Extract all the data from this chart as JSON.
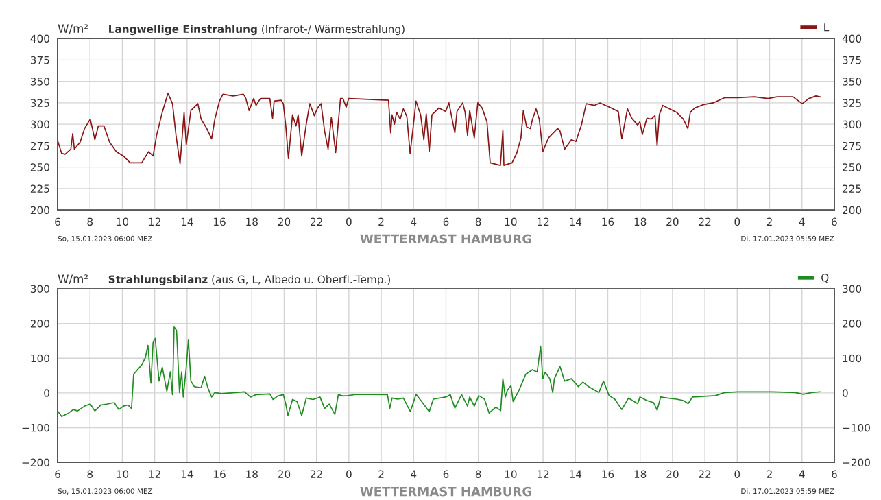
{
  "chart_data": [
    {
      "type": "line",
      "title": "Langwellige Einstrahlung",
      "subtitle": "(Infrarot-/ Wärmestrahlung)",
      "ylabel": "W/m²",
      "legend": "top right",
      "grid": true,
      "series": [
        {
          "name": "L",
          "color": "#8b1414",
          "x": [
            "2023-01-15T06:00",
            "2023-01-15T06:15",
            "2023-01-15T06:28",
            "2023-01-15T06:49",
            "2023-01-15T06:56",
            "2023-01-15T07:02",
            "2023-01-15T07:23",
            "2023-01-15T07:40",
            "2023-01-15T08:01",
            "2023-01-15T08:18",
            "2023-01-15T08:31",
            "2023-01-15T08:52",
            "2023-01-15T09:13",
            "2023-01-15T09:38",
            "2023-01-15T10:04",
            "2023-01-15T10:29",
            "2023-01-15T11:12",
            "2023-01-15T11:37",
            "2023-01-15T11:54",
            "2023-01-15T12:07",
            "2023-01-15T12:28",
            "2023-01-15T12:49",
            "2023-01-15T13:06",
            "2023-01-15T13:19",
            "2023-01-15T13:34",
            "2023-01-15T13:49",
            "2023-01-15T13:57",
            "2023-01-15T14:14",
            "2023-01-15T14:40",
            "2023-01-15T14:52",
            "2023-01-15T15:13",
            "2023-01-15T15:31",
            "2023-01-15T15:43",
            "2023-01-15T16:00",
            "2023-01-15T16:13",
            "2023-01-15T16:51",
            "2023-01-15T17:29",
            "2023-01-15T17:37",
            "2023-01-15T17:50",
            "2023-01-15T18:07",
            "2023-01-15T18:16",
            "2023-01-15T18:32",
            "2023-01-15T19:07",
            "2023-01-15T19:17",
            "2023-01-15T19:23",
            "2023-01-15T19:49",
            "2023-01-15T19:57",
            "2023-01-15T20:06",
            "2023-01-15T20:16",
            "2023-01-15T20:31",
            "2023-01-15T20:44",
            "2023-01-15T20:52",
            "2023-01-15T21:05",
            "2023-01-15T21:22",
            "2023-01-15T21:35",
            "2023-01-15T21:52",
            "2023-01-15T22:04",
            "2023-01-15T22:17",
            "2023-01-15T22:30",
            "2023-01-15T22:43",
            "2023-01-15T22:55",
            "2023-01-15T23:11",
            "2023-01-15T23:21",
            "2023-01-15T23:29",
            "2023-01-15T23:38",
            "2023-01-15T23:50",
            "2023-01-15T23:59",
            "2023-01-16T02:27",
            "2023-01-16T02:35",
            "2023-01-16T02:40",
            "2023-01-16T02:49",
            "2023-01-16T02:57",
            "2023-01-16T03:10",
            "2023-01-16T03:22",
            "2023-01-16T03:35",
            "2023-01-16T03:47",
            "2023-01-16T03:56",
            "2023-01-16T04:09",
            "2023-01-16T04:26",
            "2023-01-16T04:38",
            "2023-01-16T04:47",
            "2023-01-16T04:58",
            "2023-01-16T05:08",
            "2023-01-16T05:34",
            "2023-01-16T05:59",
            "2023-01-16T06:11",
            "2023-01-16T06:33",
            "2023-01-16T06:41",
            "2023-01-16T07:02",
            "2023-01-16T07:11",
            "2023-01-16T07:20",
            "2023-01-16T07:28",
            "2023-01-16T07:45",
            "2023-01-16T07:58",
            "2023-01-16T08:14",
            "2023-01-16T08:32",
            "2023-01-16T08:44",
            "2023-01-16T09:22",
            "2023-01-16T09:31",
            "2023-01-16T09:35",
            "2023-01-16T10:05",
            "2023-01-16T10:22",
            "2023-01-16T10:38",
            "2023-01-16T10:47",
            "2023-01-16T10:59",
            "2023-01-16T11:13",
            "2023-01-16T11:21",
            "2023-01-16T11:34",
            "2023-01-16T11:46",
            "2023-01-16T11:59",
            "2023-01-16T12:20",
            "2023-01-16T12:54",
            "2023-01-16T13:02",
            "2023-01-16T13:20",
            "2023-01-16T13:45",
            "2023-01-16T14:02",
            "2023-01-16T14:23",
            "2023-01-16T14:40",
            "2023-01-16T15:10",
            "2023-01-16T15:31",
            "2023-01-16T16:13",
            "2023-01-16T16:39",
            "2023-01-16T16:52",
            "2023-01-16T17:13",
            "2023-01-16T17:29",
            "2023-01-16T17:51",
            "2023-01-16T17:59",
            "2023-01-16T18:08",
            "2023-01-16T18:25",
            "2023-01-16T18:41",
            "2023-01-16T18:55",
            "2023-01-16T19:03",
            "2023-01-16T19:11",
            "2023-01-16T19:24",
            "2023-01-16T19:49",
            "2023-01-16T20:15",
            "2023-01-16T20:40",
            "2023-01-16T20:57",
            "2023-01-16T21:06",
            "2023-01-16T21:23",
            "2023-01-16T21:56",
            "2023-01-16T22:31",
            "2023-01-16T23:13",
            "2023-01-17T00:04",
            "2023-01-17T01:03",
            "2023-01-17T01:54",
            "2023-01-17T02:28",
            "2023-01-17T03:27",
            "2023-01-17T04:01",
            "2023-01-17T04:26",
            "2023-01-17T04:52",
            "2023-01-17T05:07"
          ],
          "values": [
            281,
            266,
            265,
            271,
            289,
            271,
            279,
            295,
            306,
            282,
            298,
            298,
            279,
            268,
            263,
            255,
            255,
            268,
            263,
            287,
            314,
            336,
            324,
            287,
            254,
            314,
            276,
            316,
            324,
            306,
            295,
            283,
            306,
            327,
            335,
            333,
            335,
            331,
            316,
            330,
            322,
            330,
            330,
            307,
            327,
            328,
            324,
            298,
            260,
            311,
            298,
            311,
            263,
            300,
            324,
            310,
            319,
            324,
            292,
            271,
            308,
            267,
            303,
            330,
            330,
            320,
            330,
            328,
            290,
            311,
            300,
            314,
            306,
            318,
            309,
            266,
            290,
            327,
            311,
            282,
            312,
            268,
            311,
            319,
            315,
            325,
            290,
            315,
            325,
            314,
            287,
            316,
            284,
            325,
            319,
            303,
            255,
            252,
            293,
            252,
            255,
            266,
            284,
            316,
            297,
            295,
            306,
            318,
            306,
            268,
            284,
            295,
            293,
            271,
            282,
            280,
            300,
            324,
            322,
            325,
            319,
            315,
            283,
            318,
            307,
            299,
            303,
            288,
            307,
            306,
            310,
            275,
            311,
            322,
            318,
            314,
            306,
            295,
            314,
            319,
            323,
            325,
            331,
            331,
            332,
            330,
            332,
            332,
            324,
            330,
            333,
            332
          ]
        }
      ],
      "xlim": [
        "2023-01-15T06:00",
        "2023-01-17T06:00"
      ],
      "xticks": [
        {
          "value": "2023-01-15T06:00",
          "label": "6"
        },
        {
          "value": "2023-01-15T08:00",
          "label": "8"
        },
        {
          "value": "2023-01-15T10:00",
          "label": "10"
        },
        {
          "value": "2023-01-15T12:00",
          "label": "12"
        },
        {
          "value": "2023-01-15T14:00",
          "label": "14"
        },
        {
          "value": "2023-01-15T16:00",
          "label": "16"
        },
        {
          "value": "2023-01-15T18:00",
          "label": "18"
        },
        {
          "value": "2023-01-15T20:00",
          "label": "20"
        },
        {
          "value": "2023-01-15T22:00",
          "label": "22"
        },
        {
          "value": "2023-01-16T00:00",
          "label": "0"
        },
        {
          "value": "2023-01-16T02:00",
          "label": "2"
        },
        {
          "value": "2023-01-16T04:00",
          "label": "4"
        },
        {
          "value": "2023-01-16T06:00",
          "label": "6"
        },
        {
          "value": "2023-01-16T08:00",
          "label": "8"
        },
        {
          "value": "2023-01-16T10:00",
          "label": "10"
        },
        {
          "value": "2023-01-16T12:00",
          "label": "12"
        },
        {
          "value": "2023-01-16T14:00",
          "label": "14"
        },
        {
          "value": "2023-01-16T16:00",
          "label": "16"
        },
        {
          "value": "2023-01-16T18:00",
          "label": "18"
        },
        {
          "value": "2023-01-16T20:00",
          "label": "20"
        },
        {
          "value": "2023-01-16T22:00",
          "label": "22"
        },
        {
          "value": "2023-01-17T00:00",
          "label": "0"
        },
        {
          "value": "2023-01-17T02:00",
          "label": "2"
        },
        {
          "value": "2023-01-17T04:00",
          "label": "4"
        },
        {
          "value": "2023-01-17T06:00",
          "label": "6"
        }
      ],
      "ylim": [
        200,
        400
      ],
      "yticks": [
        200,
        225,
        250,
        275,
        300,
        325,
        350,
        375,
        400
      ],
      "y2lim": [
        200,
        400
      ],
      "y2ticks": [
        200,
        225,
        250,
        275,
        300,
        325,
        350,
        375,
        400
      ],
      "annotations": [
        "So, 15.01.2023 06:00 MEZ",
        "WETTERMAST HAMBURG",
        "Di, 17.01.2023 05:59 MEZ"
      ]
    },
    {
      "type": "line",
      "title": "Strahlungsbilanz",
      "subtitle": "(aus G, L, Albedo u. Oberfl.-Temp.)",
      "ylabel": "W/m²",
      "legend": "top right",
      "grid": true,
      "series": [
        {
          "name": "Q",
          "color": "#1f8c1f",
          "x": [
            "2023-01-15T06:00",
            "2023-01-15T06:15",
            "2023-01-15T06:41",
            "2023-01-15T06:58",
            "2023-01-15T07:14",
            "2023-01-15T07:40",
            "2023-01-15T08:01",
            "2023-01-15T08:18",
            "2023-01-15T08:40",
            "2023-01-15T09:05",
            "2023-01-15T09:30",
            "2023-01-15T09:47",
            "2023-01-15T10:04",
            "2023-01-15T10:21",
            "2023-01-15T10:34",
            "2023-01-15T10:42",
            "2023-01-15T11:12",
            "2023-01-15T11:25",
            "2023-01-15T11:35",
            "2023-01-15T11:46",
            "2023-01-15T11:54",
            "2023-01-15T12:02",
            "2023-01-15T12:16",
            "2023-01-15T12:28",
            "2023-01-15T12:45",
            "2023-01-15T12:58",
            "2023-01-15T13:06",
            "2023-01-15T13:12",
            "2023-01-15T13:21",
            "2023-01-15T13:32",
            "2023-01-15T13:40",
            "2023-01-15T13:46",
            "2023-01-15T13:57",
            "2023-01-15T14:05",
            "2023-01-15T14:14",
            "2023-01-15T14:27",
            "2023-01-15T14:52",
            "2023-01-15T15:05",
            "2023-01-15T15:17",
            "2023-01-15T15:31",
            "2023-01-15T15:43",
            "2023-01-15T16:08",
            "2023-01-15T16:59",
            "2023-01-15T17:33",
            "2023-01-15T17:55",
            "2023-01-15T18:16",
            "2023-01-15T19:07",
            "2023-01-15T19:19",
            "2023-01-15T19:36",
            "2023-01-15T19:57",
            "2023-01-15T20:06",
            "2023-01-15T20:14",
            "2023-01-15T20:31",
            "2023-01-15T20:48",
            "2023-01-15T21:05",
            "2023-01-15T21:22",
            "2023-01-15T21:47",
            "2023-01-15T22:13",
            "2023-01-15T22:30",
            "2023-01-15T22:47",
            "2023-01-15T23:08",
            "2023-01-15T23:21",
            "2023-01-15T23:38",
            "2023-01-15T23:55",
            "2023-01-16T00:29",
            "2023-01-16T02:23",
            "2023-01-16T02:32",
            "2023-01-16T02:40",
            "2023-01-16T03:01",
            "2023-01-16T03:22",
            "2023-01-16T03:48",
            "2023-01-16T04:09",
            "2023-01-16T04:30",
            "2023-01-16T04:58",
            "2023-01-16T05:13",
            "2023-01-16T05:59",
            "2023-01-16T06:16",
            "2023-01-16T06:33",
            "2023-01-16T06:58",
            "2023-01-16T07:20",
            "2023-01-16T07:28",
            "2023-01-16T07:45",
            "2023-01-16T08:02",
            "2023-01-16T08:23",
            "2023-01-16T08:40",
            "2023-01-16T09:05",
            "2023-01-16T09:23",
            "2023-01-16T09:31",
            "2023-01-16T09:40",
            "2023-01-16T09:48",
            "2023-01-16T10:01",
            "2023-01-16T10:09",
            "2023-01-16T10:31",
            "2023-01-16T10:56",
            "2023-01-16T11:21",
            "2023-01-16T11:38",
            "2023-01-16T11:51",
            "2023-01-16T11:59",
            "2023-01-16T12:08",
            "2023-01-16T12:25",
            "2023-01-16T12:36",
            "2023-01-16T12:42",
            "2023-01-16T13:03",
            "2023-01-16T13:20",
            "2023-01-16T13:45",
            "2023-01-16T14:11",
            "2023-01-16T14:28",
            "2023-01-16T14:49",
            "2023-01-16T15:27",
            "2023-01-16T15:44",
            "2023-01-16T16:05",
            "2023-01-16T16:26",
            "2023-01-16T16:52",
            "2023-01-16T17:17",
            "2023-01-16T17:51",
            "2023-01-16T17:59",
            "2023-01-16T18:08",
            "2023-01-16T18:25",
            "2023-01-16T18:50",
            "2023-01-16T19:03",
            "2023-01-16T19:16",
            "2023-01-16T19:41",
            "2023-01-16T20:15",
            "2023-01-16T20:41",
            "2023-01-16T20:58",
            "2023-01-16T21:14",
            "2023-01-16T21:57",
            "2023-01-16T22:39",
            "2023-01-16T23:13",
            "2023-01-17T00:04",
            "2023-01-17T02:11",
            "2023-01-17T03:36",
            "2023-01-17T04:05",
            "2023-01-17T04:35",
            "2023-01-17T05:07"
          ],
          "values": [
            -52,
            -68,
            -58,
            -48,
            -52,
            -38,
            -32,
            -52,
            -35,
            -32,
            -28,
            -48,
            -38,
            -35,
            -45,
            54,
            81,
            101,
            137,
            28,
            147,
            157,
            34,
            74,
            5,
            61,
            -5,
            190,
            180,
            1,
            61,
            -12,
            74,
            154,
            34,
            18,
            15,
            48,
            15,
            -12,
            1,
            -2,
            1,
            3,
            -12,
            -5,
            -3,
            -19,
            -9,
            -5,
            -32,
            -65,
            -19,
            -25,
            -65,
            -15,
            -19,
            -12,
            -45,
            -32,
            -62,
            -5,
            -9,
            -8,
            -4,
            -5,
            -44,
            -15,
            -18,
            -15,
            -54,
            -4,
            -25,
            -54,
            -18,
            -12,
            -5,
            -44,
            -5,
            -38,
            -12,
            -38,
            -8,
            -18,
            -58,
            -41,
            -51,
            41,
            -12,
            8,
            21,
            -25,
            8,
            54,
            67,
            60,
            135,
            41,
            60,
            41,
            1,
            41,
            76,
            34,
            41,
            18,
            31,
            18,
            1,
            34,
            -8,
            -18,
            -48,
            -15,
            -31,
            -12,
            -15,
            -22,
            -28,
            -50,
            -12,
            -15,
            -18,
            -22,
            -31,
            -12,
            -10,
            -8,
            1,
            3,
            3,
            1,
            -4,
            1,
            3
          ]
        }
      ],
      "xlim": [
        "2023-01-15T06:00",
        "2023-01-17T06:00"
      ],
      "xticks": [
        {
          "value": "2023-01-15T06:00",
          "label": "6"
        },
        {
          "value": "2023-01-15T08:00",
          "label": "8"
        },
        {
          "value": "2023-01-15T10:00",
          "label": "10"
        },
        {
          "value": "2023-01-15T12:00",
          "label": "12"
        },
        {
          "value": "2023-01-15T14:00",
          "label": "14"
        },
        {
          "value": "2023-01-15T16:00",
          "label": "16"
        },
        {
          "value": "2023-01-15T18:00",
          "label": "18"
        },
        {
          "value": "2023-01-15T20:00",
          "label": "20"
        },
        {
          "value": "2023-01-15T22:00",
          "label": "22"
        },
        {
          "value": "2023-01-16T00:00",
          "label": "0"
        },
        {
          "value": "2023-01-16T02:00",
          "label": "2"
        },
        {
          "value": "2023-01-16T04:00",
          "label": "4"
        },
        {
          "value": "2023-01-16T06:00",
          "label": "6"
        },
        {
          "value": "2023-01-16T08:00",
          "label": "8"
        },
        {
          "value": "2023-01-16T10:00",
          "label": "10"
        },
        {
          "value": "2023-01-16T12:00",
          "label": "12"
        },
        {
          "value": "2023-01-16T14:00",
          "label": "14"
        },
        {
          "value": "2023-01-16T16:00",
          "label": "16"
        },
        {
          "value": "2023-01-16T18:00",
          "label": "18"
        },
        {
          "value": "2023-01-16T20:00",
          "label": "20"
        },
        {
          "value": "2023-01-16T22:00",
          "label": "22"
        },
        {
          "value": "2023-01-17T00:00",
          "label": "0"
        },
        {
          "value": "2023-01-17T02:00",
          "label": "2"
        },
        {
          "value": "2023-01-17T04:00",
          "label": "4"
        },
        {
          "value": "2023-01-17T06:00",
          "label": "6"
        }
      ],
      "ylim": [
        -200,
        300
      ],
      "yticks": [
        {
          "value": -200,
          "label": "−200"
        },
        {
          "value": -100,
          "label": "−100"
        },
        0,
        100,
        200,
        300
      ],
      "y2lim": [
        -200,
        300
      ],
      "y2ticks": [
        {
          "value": -200,
          "label": "−200"
        },
        {
          "value": -100,
          "label": "−100"
        },
        0,
        100,
        200,
        300
      ],
      "annotations": [
        "So, 15.01.2023 06:00 MEZ",
        "WETTERMAST HAMBURG",
        "Di, 17.01.2023 05:59 MEZ"
      ]
    }
  ]
}
